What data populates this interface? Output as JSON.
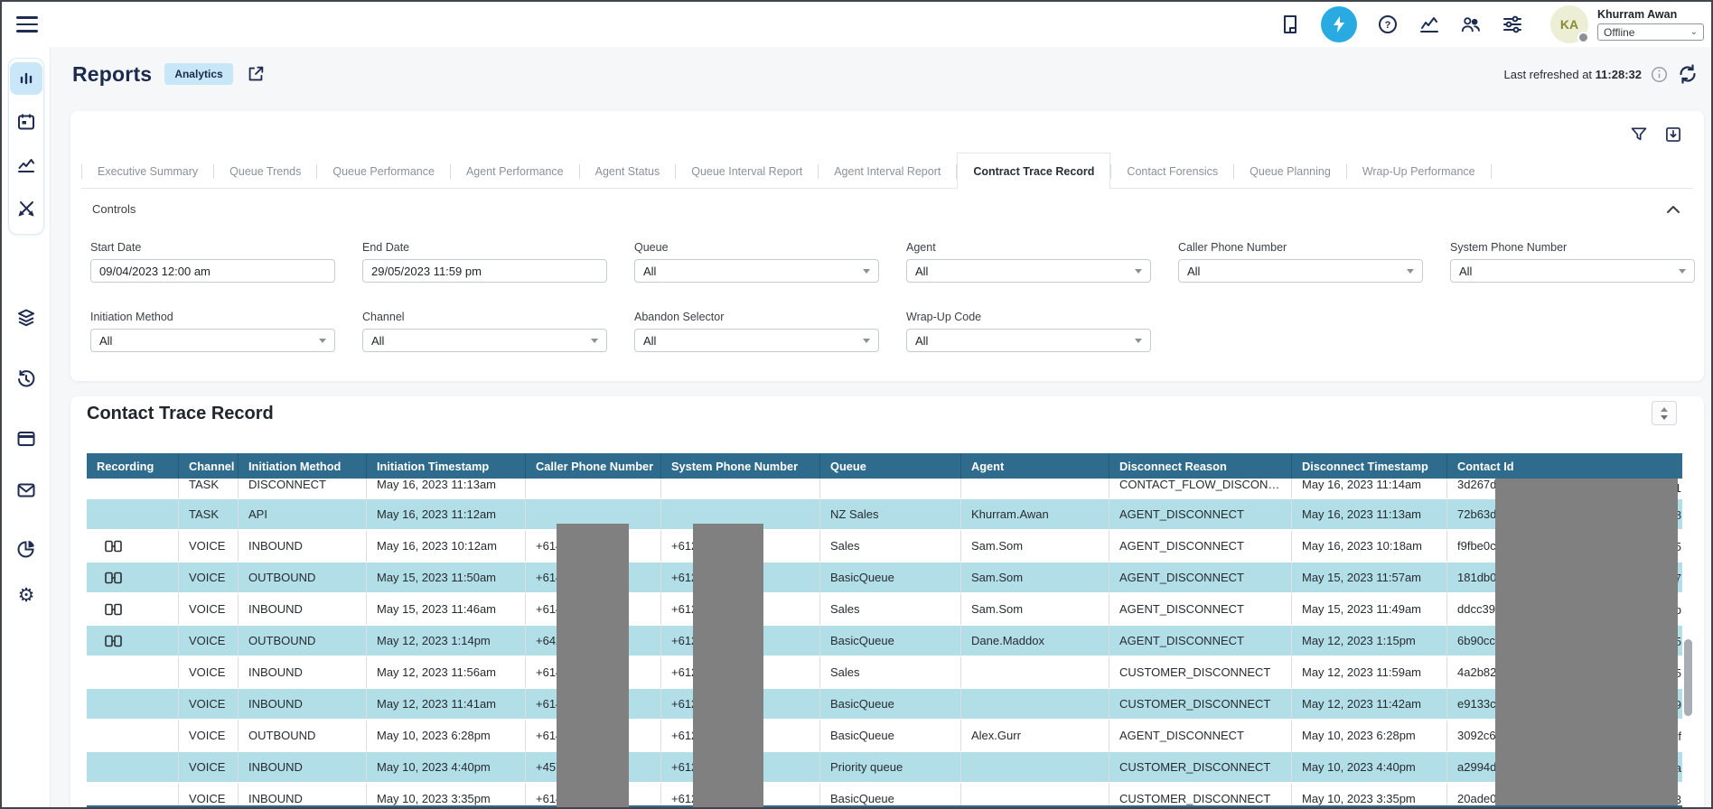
{
  "colors": {
    "accent": "#29abe2",
    "table_header": "#2f6b8c",
    "row_highlight": "#b2dee8",
    "redaction": "#808080"
  },
  "topbar": {
    "user_initials": "KA",
    "user_name": "Khurram Awan",
    "status_value": "Offline"
  },
  "sidebar": {
    "icons": [
      "bar-chart",
      "calendar",
      "line-chart",
      "design-brush",
      "layers",
      "history",
      "browser-window",
      "mail",
      "pie-chart",
      "settings-gear"
    ]
  },
  "header": {
    "title": "Reports",
    "badge": "Analytics",
    "refresh_label": "Last refreshed at",
    "refresh_time": "11:28:32"
  },
  "tabs": [
    {
      "label": "Executive Summary",
      "active": false
    },
    {
      "label": "Queue Trends",
      "active": false
    },
    {
      "label": "Queue Performance",
      "active": false
    },
    {
      "label": "Agent Performance",
      "active": false
    },
    {
      "label": "Agent Status",
      "active": false
    },
    {
      "label": "Queue Interval Report",
      "active": false
    },
    {
      "label": "Agent Interval Report",
      "active": false
    },
    {
      "label": "Contract Trace Record",
      "active": true
    },
    {
      "label": "Contact Forensics",
      "active": false
    },
    {
      "label": "Queue Planning",
      "active": false
    },
    {
      "label": "Wrap-Up Performance",
      "active": false
    }
  ],
  "controls": {
    "title": "Controls",
    "fields": [
      {
        "label": "Start Date",
        "value": "09/04/2023 12:00 am",
        "type": "text"
      },
      {
        "label": "End Date",
        "value": "29/05/2023 11:59 pm",
        "type": "text"
      },
      {
        "label": "Queue",
        "value": "All",
        "type": "select"
      },
      {
        "label": "Agent",
        "value": "All",
        "type": "select"
      },
      {
        "label": "Caller Phone Number",
        "value": "All",
        "type": "select"
      },
      {
        "label": "System Phone Number",
        "value": "All",
        "type": "select"
      },
      {
        "label": "Initiation Method",
        "value": "All",
        "type": "select"
      },
      {
        "label": "Channel",
        "value": "All",
        "type": "select"
      },
      {
        "label": "Abandon Selector",
        "value": "All",
        "type": "select"
      },
      {
        "label": "Wrap-Up Code",
        "value": "All",
        "type": "select"
      }
    ]
  },
  "report": {
    "title": "Contact Trace Record",
    "columns": [
      "Recording",
      "Channel",
      "Initiation Method",
      "Initiation Timestamp",
      "Caller Phone Number",
      "System Phone Number",
      "Queue",
      "Agent",
      "Disconnect Reason",
      "Disconnect Timestamp",
      "Contact Id"
    ],
    "rows": [
      {
        "clipped": true,
        "highlight": false,
        "recording": false,
        "channel": "TASK",
        "method": "DISCONNECT",
        "initiation_ts": "May 16, 2023 11:13am",
        "caller": "",
        "system": "",
        "queue": "",
        "agent": "",
        "reason": "CONTACT_FLOW_DISCON…",
        "disconnect_ts": "May 16, 2023 11:14am",
        "contact_id": "3d267d",
        "contact_id_tail": "1"
      },
      {
        "clipped": false,
        "highlight": true,
        "recording": false,
        "channel": "TASK",
        "method": "API",
        "initiation_ts": "May 16, 2023 11:12am",
        "caller": "",
        "system": "",
        "queue": "NZ Sales",
        "agent": "Khurram.Awan",
        "reason": "AGENT_DISCONNECT",
        "disconnect_ts": "May 16, 2023 11:13am",
        "contact_id": "72b63d",
        "contact_id_tail": "8"
      },
      {
        "clipped": false,
        "highlight": false,
        "recording": true,
        "channel": "VOICE",
        "method": "INBOUND",
        "initiation_ts": "May 16, 2023 10:12am",
        "caller": "+614",
        "system": "+612",
        "queue": "Sales",
        "agent": "Sam.Som",
        "reason": "AGENT_DISCONNECT",
        "disconnect_ts": "May 16, 2023 10:18am",
        "contact_id": "f9fbe0c",
        "contact_id_tail": "5"
      },
      {
        "clipped": false,
        "highlight": true,
        "recording": true,
        "channel": "VOICE",
        "method": "OUTBOUND",
        "initiation_ts": "May 15, 2023 11:50am",
        "caller": "+614",
        "system": "+612",
        "queue": "BasicQueue",
        "agent": "Sam.Som",
        "reason": "AGENT_DISCONNECT",
        "disconnect_ts": "May 15, 2023 11:57am",
        "contact_id": "181db0",
        "contact_id_tail": "7"
      },
      {
        "clipped": false,
        "highlight": false,
        "recording": true,
        "channel": "VOICE",
        "method": "INBOUND",
        "initiation_ts": "May 15, 2023 11:46am",
        "caller": "+614",
        "system": "+612",
        "queue": "Sales",
        "agent": "Sam.Som",
        "reason": "AGENT_DISCONNECT",
        "disconnect_ts": "May 15, 2023 11:49am",
        "contact_id": "ddcc394",
        "contact_id_tail": "b"
      },
      {
        "clipped": false,
        "highlight": true,
        "recording": true,
        "channel": "VOICE",
        "method": "OUTBOUND",
        "initiation_ts": "May 12, 2023 1:14pm",
        "caller": "+642",
        "system": "+612",
        "queue": "BasicQueue",
        "agent": "Dane.Maddox",
        "reason": "AGENT_DISCONNECT",
        "disconnect_ts": "May 12, 2023 1:15pm",
        "contact_id": "6b90cca",
        "contact_id_tail": "5"
      },
      {
        "clipped": false,
        "highlight": false,
        "recording": false,
        "channel": "VOICE",
        "method": "INBOUND",
        "initiation_ts": "May 12, 2023 11:56am",
        "caller": "+614",
        "system": "+612",
        "queue": "Sales",
        "agent": "",
        "reason": "CUSTOMER_DISCONNECT",
        "disconnect_ts": "May 12, 2023 11:59am",
        "contact_id": "4a2b82",
        "contact_id_tail": "85"
      },
      {
        "clipped": false,
        "highlight": true,
        "recording": false,
        "channel": "VOICE",
        "method": "INBOUND",
        "initiation_ts": "May 12, 2023 11:41am",
        "caller": "+614",
        "system": "+612",
        "queue": "BasicQueue",
        "agent": "",
        "reason": "CUSTOMER_DISCONNECT",
        "disconnect_ts": "May 12, 2023 11:42am",
        "contact_id": "e9133c5",
        "contact_id_tail": "9"
      },
      {
        "clipped": false,
        "highlight": false,
        "recording": false,
        "channel": "VOICE",
        "method": "OUTBOUND",
        "initiation_ts": "May 10, 2023 6:28pm",
        "caller": "+614",
        "system": "+612",
        "queue": "BasicQueue",
        "agent": "Alex.Gurr",
        "reason": "AGENT_DISCONNECT",
        "disconnect_ts": "May 10, 2023 6:28pm",
        "contact_id": "3092c6",
        "contact_id_tail": "f"
      },
      {
        "clipped": false,
        "highlight": true,
        "recording": false,
        "channel": "VOICE",
        "method": "INBOUND",
        "initiation_ts": "May 10, 2023 4:40pm",
        "caller": "+457",
        "system": "+612",
        "queue": "Priority queue",
        "agent": "",
        "reason": "CUSTOMER_DISCONNECT",
        "disconnect_ts": "May 10, 2023 4:40pm",
        "contact_id": "a2994d",
        "contact_id_tail": "a"
      },
      {
        "clipped": false,
        "highlight": false,
        "recording": false,
        "channel": "VOICE",
        "method": "INBOUND",
        "initiation_ts": "May 10, 2023 3:35pm",
        "caller": "+614",
        "system": "+612",
        "queue": "BasicQueue",
        "agent": "",
        "reason": "CUSTOMER_DISCONNECT",
        "disconnect_ts": "May 10, 2023 3:35pm",
        "contact_id": "20ade0",
        "contact_id_tail": "3"
      }
    ]
  }
}
